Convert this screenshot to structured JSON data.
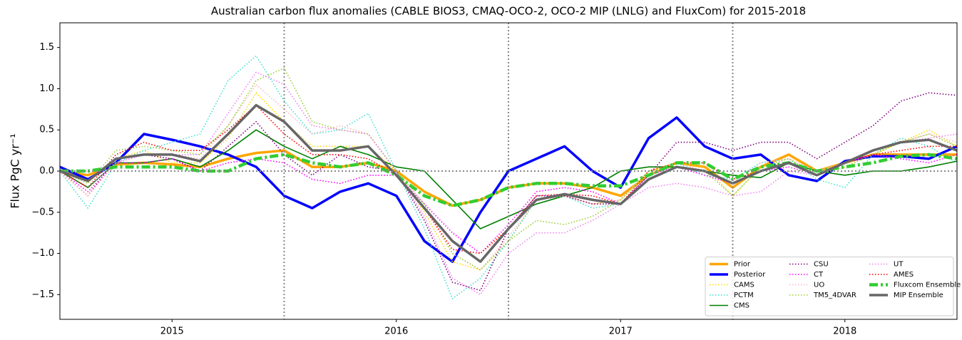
{
  "chart_data": {
    "type": "line",
    "title": "Australian carbon flux anomalies (CABLE BIOS3, CMAQ-OCO-2, OCO-2 MIP (LNLG) and FluxCom) for 2015-2018",
    "ylabel": "Flux PgC yr⁻¹",
    "xlim": [
      2014.5,
      2018.5
    ],
    "ylim": [
      -1.8,
      1.8
    ],
    "xticks": [
      2015,
      2016,
      2017,
      2018
    ],
    "yticks": [
      {
        "value": -1.5,
        "label": "−1.5"
      },
      {
        "value": -1.0,
        "label": "−1.0"
      },
      {
        "value": -0.5,
        "label": "−0.5"
      },
      {
        "value": 0,
        "label": "0.0"
      },
      {
        "value": 0.5,
        "label": "0.5"
      },
      {
        "value": 1.0,
        "label": "1.0"
      },
      {
        "value": 1.5,
        "label": "1.5"
      }
    ],
    "vlines": [
      2015.5,
      2016.5,
      2017.5
    ],
    "hlines": [
      0
    ],
    "legend": "lower right",
    "legend_ncol": 3,
    "x": [
      2014.5,
      2014.625,
      2014.75,
      2014.875,
      2015,
      2015.125,
      2015.25,
      2015.375,
      2015.5,
      2015.625,
      2015.75,
      2015.875,
      2016,
      2016.125,
      2016.25,
      2016.375,
      2016.5,
      2016.625,
      2016.75,
      2016.875,
      2017,
      2017.125,
      2017.25,
      2017.375,
      2017.5,
      2017.625,
      2017.75,
      2017.875,
      2018,
      2018.125,
      2018.25,
      2018.375,
      2018.5
    ],
    "series": [
      {
        "name": "Prior",
        "color": "#ffa500",
        "linestyle": "solid",
        "linewidth": 3.5,
        "values": [
          0.0,
          -0.05,
          0.08,
          0.1,
          0.08,
          0.05,
          0.15,
          0.22,
          0.25,
          0.05,
          0.05,
          0.1,
          0.0,
          -0.25,
          -0.42,
          -0.35,
          -0.2,
          -0.15,
          -0.15,
          -0.2,
          -0.3,
          -0.05,
          0.1,
          0.05,
          -0.2,
          0.05,
          0.2,
          0.0,
          0.1,
          0.2,
          0.2,
          0.2,
          0.2
        ]
      },
      {
        "name": "Posterior",
        "color": "#0000ff",
        "linestyle": "solid",
        "linewidth": 3.5,
        "values": [
          0.05,
          -0.1,
          0.1,
          0.45,
          0.38,
          0.3,
          0.2,
          0.05,
          -0.3,
          -0.45,
          -0.25,
          -0.15,
          -0.3,
          -0.85,
          -1.1,
          -0.5,
          0.0,
          0.15,
          0.3,
          0.0,
          -0.2,
          0.4,
          0.65,
          0.3,
          0.15,
          0.2,
          -0.05,
          -0.12,
          0.12,
          0.18,
          0.18,
          0.15,
          0.3
        ]
      },
      {
        "name": "CAMS",
        "color": "#ffd700",
        "linestyle": "dotted",
        "linewidth": 1.6,
        "values": [
          0.0,
          -0.3,
          0.15,
          0.25,
          0.1,
          0.1,
          0.4,
          0.95,
          0.6,
          0.3,
          0.3,
          0.3,
          0.0,
          -0.5,
          -1.1,
          -1.2,
          -0.85,
          -0.35,
          -0.3,
          -0.4,
          -0.35,
          0.0,
          0.1,
          0.05,
          -0.3,
          0.05,
          0.1,
          0.0,
          0.1,
          0.2,
          0.35,
          0.5,
          0.3
        ]
      },
      {
        "name": "PCTM",
        "color": "#40e0d0",
        "linestyle": "dotted",
        "linewidth": 1.6,
        "values": [
          0.0,
          -0.45,
          0.1,
          0.25,
          0.35,
          0.45,
          1.1,
          1.4,
          0.85,
          0.45,
          0.5,
          0.7,
          0.0,
          -0.7,
          -1.55,
          -1.3,
          -0.85,
          -0.35,
          -0.3,
          -0.45,
          -0.4,
          -0.05,
          0.1,
          -0.05,
          -0.1,
          0.1,
          0.15,
          -0.1,
          -0.2,
          0.2,
          0.4,
          0.3,
          0.1
        ]
      },
      {
        "name": "CMS",
        "color": "#008000",
        "linestyle": "solid",
        "linewidth": 1.6,
        "values": [
          0.0,
          -0.2,
          0.1,
          0.1,
          0.15,
          0.05,
          0.25,
          0.5,
          0.3,
          0.15,
          0.3,
          0.2,
          0.05,
          0.0,
          -0.35,
          -0.7,
          -0.55,
          -0.4,
          -0.3,
          -0.2,
          0.0,
          0.05,
          0.05,
          0.0,
          -0.05,
          -0.08,
          0.1,
          0.0,
          -0.05,
          0.0,
          0.0,
          0.05,
          0.12
        ]
      },
      {
        "name": "CSU",
        "color": "#800080",
        "linestyle": "dotted",
        "linewidth": 1.6,
        "values": [
          0.0,
          -0.3,
          0.15,
          0.2,
          0.15,
          0.0,
          0.3,
          0.6,
          0.2,
          -0.05,
          0.2,
          0.05,
          0.0,
          -0.6,
          -1.35,
          -1.45,
          -0.7,
          -0.3,
          -0.3,
          -0.4,
          -0.4,
          -0.05,
          0.35,
          0.35,
          0.25,
          0.35,
          0.35,
          0.15,
          0.35,
          0.55,
          0.85,
          0.95,
          0.92
        ]
      },
      {
        "name": "CT",
        "color": "#ff00ff",
        "linestyle": "dotted",
        "linewidth": 1.6,
        "values": [
          0.0,
          -0.25,
          0.1,
          0.1,
          0.15,
          0.0,
          0.1,
          0.15,
          0.1,
          -0.1,
          -0.15,
          -0.05,
          -0.05,
          -0.4,
          -0.75,
          -1.0,
          -0.65,
          -0.25,
          -0.2,
          -0.25,
          -0.4,
          -0.05,
          0.05,
          -0.05,
          -0.15,
          0.0,
          0.05,
          -0.05,
          0.1,
          0.2,
          0.15,
          0.1,
          0.2
        ]
      },
      {
        "name": "UO",
        "color": "#ffb6c1",
        "linestyle": "dotted",
        "linewidth": 1.6,
        "values": [
          0.0,
          -0.3,
          0.1,
          0.2,
          0.2,
          0.15,
          0.55,
          1.05,
          0.75,
          0.45,
          0.55,
          0.45,
          0.0,
          -0.45,
          -1.0,
          -1.2,
          -0.8,
          -0.35,
          -0.3,
          -0.4,
          -0.35,
          0.0,
          0.1,
          0.0,
          -0.15,
          0.1,
          0.15,
          0.0,
          0.1,
          0.25,
          0.35,
          0.45,
          0.35
        ]
      },
      {
        "name": "TM5_4DVAR",
        "color": "#9acd32",
        "linestyle": "dotted",
        "linewidth": 1.6,
        "values": [
          0.0,
          -0.15,
          0.25,
          0.3,
          0.25,
          0.2,
          0.55,
          1.1,
          1.25,
          0.6,
          0.5,
          0.45,
          0.0,
          -0.4,
          -1.0,
          -1.2,
          -0.85,
          -0.6,
          -0.65,
          -0.55,
          -0.35,
          0.0,
          0.05,
          0.0,
          -0.3,
          0.05,
          0.15,
          -0.05,
          0.05,
          0.2,
          0.35,
          0.45,
          0.3
        ]
      },
      {
        "name": "UT",
        "color": "#ee82ee",
        "linestyle": "dotted",
        "linewidth": 1.6,
        "values": [
          0.0,
          -0.2,
          0.1,
          0.2,
          0.2,
          0.2,
          0.7,
          1.2,
          1.05,
          0.55,
          0.5,
          0.45,
          0.0,
          -0.55,
          -1.3,
          -1.5,
          -1.0,
          -0.75,
          -0.75,
          -0.6,
          -0.4,
          -0.2,
          -0.15,
          -0.2,
          -0.3,
          -0.25,
          0.0,
          -0.05,
          0.1,
          0.25,
          0.35,
          0.4,
          0.45
        ]
      },
      {
        "name": "AMES",
        "color": "#ff0000",
        "linestyle": "dotted",
        "linewidth": 1.6,
        "values": [
          0.0,
          -0.2,
          0.2,
          0.35,
          0.25,
          0.25,
          0.5,
          0.8,
          0.45,
          0.2,
          0.2,
          0.15,
          -0.05,
          -0.45,
          -0.95,
          -1.0,
          -0.7,
          -0.3,
          -0.28,
          -0.3,
          -0.4,
          0.0,
          0.1,
          0.1,
          -0.1,
          0.0,
          0.1,
          -0.05,
          0.1,
          0.2,
          0.25,
          0.3,
          0.3
        ]
      },
      {
        "name": "Fluxcom Ensemble",
        "color": "#32cd32",
        "linestyle": "dashdot",
        "linewidth": 4.5,
        "values": [
          0.0,
          0.0,
          0.05,
          0.05,
          0.05,
          0.0,
          0.0,
          0.15,
          0.2,
          0.1,
          0.05,
          0.1,
          -0.05,
          -0.3,
          -0.42,
          -0.35,
          -0.2,
          -0.15,
          -0.15,
          -0.18,
          -0.18,
          -0.05,
          0.1,
          0.1,
          -0.1,
          0.05,
          0.1,
          0.0,
          0.05,
          0.1,
          0.18,
          0.2,
          0.15
        ]
      },
      {
        "name": "MIP Ensemble",
        "color": "#666666",
        "linestyle": "solid",
        "linewidth": 3.5,
        "values": [
          0.0,
          -0.12,
          0.15,
          0.2,
          0.2,
          0.12,
          0.45,
          0.8,
          0.6,
          0.25,
          0.25,
          0.3,
          -0.05,
          -0.45,
          -0.85,
          -1.1,
          -0.7,
          -0.35,
          -0.28,
          -0.35,
          -0.4,
          -0.1,
          0.05,
          0.0,
          -0.15,
          0.0,
          0.1,
          -0.05,
          0.1,
          0.25,
          0.35,
          0.38,
          0.25
        ]
      }
    ]
  }
}
